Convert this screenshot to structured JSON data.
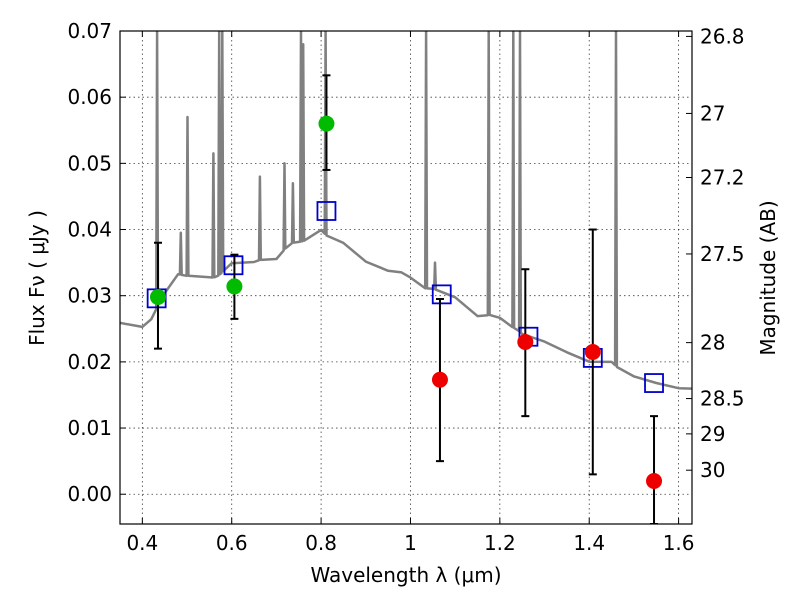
{
  "chart_data": {
    "type": "scatter",
    "xlabel": "Wavelength  λ (μm)",
    "ylabel": "Flux  Fν  ( μJy )",
    "ylabel_right": "Magnitude (AB)",
    "xlim": [
      0.35,
      1.63
    ],
    "ylim": [
      -0.0045,
      0.07
    ],
    "grid": true,
    "x_ticks": [
      {
        "value": 0.4,
        "label": "0.4"
      },
      {
        "value": 0.6,
        "label": "0.6"
      },
      {
        "value": 0.8,
        "label": "0.8"
      },
      {
        "value": 1.0,
        "label": "1"
      },
      {
        "value": 1.2,
        "label": "1.2"
      },
      {
        "value": 1.4,
        "label": "1.4"
      },
      {
        "value": 1.6,
        "label": "1.6"
      }
    ],
    "y_ticks": [
      {
        "value": 0.0,
        "label": "0.00"
      },
      {
        "value": 0.01,
        "label": "0.01"
      },
      {
        "value": 0.02,
        "label": "0.02"
      },
      {
        "value": 0.03,
        "label": "0.03"
      },
      {
        "value": 0.04,
        "label": "0.04"
      },
      {
        "value": 0.05,
        "label": "0.05"
      },
      {
        "value": 0.06,
        "label": "0.06"
      },
      {
        "value": 0.07,
        "label": "0.07"
      }
    ],
    "right_ticks": [
      {
        "value": 26.8,
        "label": "26.8"
      },
      {
        "value": 27.0,
        "label": "27"
      },
      {
        "value": 27.2,
        "label": "27.2"
      },
      {
        "value": 27.5,
        "label": "27.5"
      },
      {
        "value": 28.0,
        "label": "28"
      },
      {
        "value": 28.5,
        "label": "28.5"
      },
      {
        "value": 29.0,
        "label": "29"
      },
      {
        "value": 30.0,
        "label": "30"
      }
    ],
    "colors": {
      "model": "#808080",
      "green_points": "#00bb00",
      "red_points": "#ee0000",
      "model_squares": "#0000cc",
      "error_bars": "#000000"
    },
    "model_spectrum": {
      "continuum": [
        [
          0.35,
          0.0258
        ],
        [
          0.4,
          0.0248
        ],
        [
          0.42,
          0.0265
        ],
        [
          0.44,
          0.03
        ],
        [
          0.48,
          0.033
        ],
        [
          0.55,
          0.033
        ],
        [
          0.6,
          0.0345
        ],
        [
          0.65,
          0.035
        ],
        [
          0.7,
          0.036
        ],
        [
          0.75,
          0.038
        ],
        [
          0.8,
          0.04
        ],
        [
          0.85,
          0.0375
        ],
        [
          0.9,
          0.0355
        ],
        [
          0.95,
          0.034
        ],
        [
          0.98,
          0.033
        ],
        [
          1.0,
          0.0325
        ],
        [
          1.05,
          0.031
        ],
        [
          1.1,
          0.0295
        ],
        [
          1.15,
          0.0275
        ],
        [
          1.2,
          0.0265
        ],
        [
          1.25,
          0.024
        ],
        [
          1.3,
          0.023
        ],
        [
          1.35,
          0.0215
        ],
        [
          1.4,
          0.0205
        ],
        [
          1.45,
          0.0195
        ],
        [
          1.5,
          0.0178
        ],
        [
          1.55,
          0.0168
        ],
        [
          1.6,
          0.0163
        ],
        [
          1.63,
          0.016
        ]
      ],
      "emission_lines": [
        {
          "x": 0.433,
          "peak": 0.07
        },
        {
          "x": 0.486,
          "peak": 0.0395
        },
        {
          "x": 0.501,
          "peak": 0.057
        },
        {
          "x": 0.559,
          "peak": 0.0515
        },
        {
          "x": 0.572,
          "peak": 0.07
        },
        {
          "x": 0.579,
          "peak": 0.07
        },
        {
          "x": 0.663,
          "peak": 0.048
        },
        {
          "x": 0.718,
          "peak": 0.05
        },
        {
          "x": 0.737,
          "peak": 0.047
        },
        {
          "x": 0.755,
          "peak": 0.07
        },
        {
          "x": 0.76,
          "peak": 0.068
        },
        {
          "x": 0.81,
          "peak": 0.07
        },
        {
          "x": 1.035,
          "peak": 0.07
        },
        {
          "x": 1.055,
          "peak": 0.035
        },
        {
          "x": 1.175,
          "peak": 0.07
        },
        {
          "x": 1.23,
          "peak": 0.07
        },
        {
          "x": 1.245,
          "peak": 0.07
        },
        {
          "x": 1.46,
          "peak": 0.07
        }
      ]
    },
    "model_photometry": [
      {
        "x": 0.432,
        "y": 0.0296
      },
      {
        "x": 0.604,
        "y": 0.0346
      },
      {
        "x": 0.812,
        "y": 0.0428
      },
      {
        "x": 1.07,
        "y": 0.0302
      },
      {
        "x": 1.264,
        "y": 0.0238
      },
      {
        "x": 1.408,
        "y": 0.0206
      },
      {
        "x": 1.545,
        "y": 0.0168
      }
    ],
    "observed": [
      {
        "x": 0.435,
        "y": 0.0298,
        "err_low": 0.022,
        "err_high": 0.038,
        "color": "green"
      },
      {
        "x": 0.606,
        "y": 0.0314,
        "err_low": 0.0265,
        "err_high": 0.0362,
        "color": "green"
      },
      {
        "x": 0.812,
        "y": 0.056,
        "err_low": 0.049,
        "err_high": 0.0633,
        "color": "green"
      },
      {
        "x": 1.066,
        "y": 0.0173,
        "err_low": 0.005,
        "err_high": 0.0295,
        "color": "red"
      },
      {
        "x": 1.257,
        "y": 0.023,
        "err_low": 0.0118,
        "err_high": 0.034,
        "color": "red"
      },
      {
        "x": 1.408,
        "y": 0.0215,
        "err_low": 0.003,
        "err_high": 0.04,
        "color": "red"
      },
      {
        "x": 1.545,
        "y": 0.002,
        "err_low": -0.0045,
        "err_high": 0.0118,
        "color": "red"
      }
    ]
  }
}
